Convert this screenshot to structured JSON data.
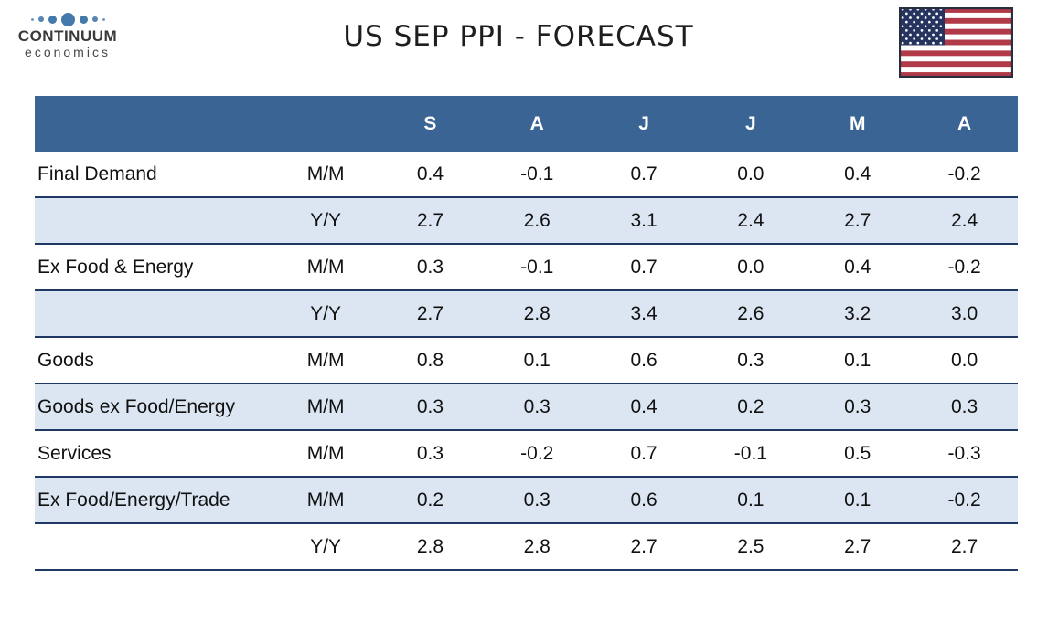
{
  "header": {
    "title": "US SEP PPI - FORECAST",
    "logo": {
      "name": "CONTINUUM",
      "subname": "economics",
      "dot_color": "#4379ab",
      "icon": "continuum-dots-logo"
    },
    "flag": {
      "icon": "us-flag-icon",
      "red": "#b13a48",
      "canton_navy": "#26345f",
      "border": "#272e40"
    }
  },
  "table": {
    "columns": [
      "S",
      "A",
      "J",
      "J",
      "M",
      "A"
    ],
    "rows": [
      {
        "label": "Final Demand",
        "freq": "M/M",
        "shaded": false,
        "values": [
          "0.4",
          "-0.1",
          "0.7",
          "0.0",
          "0.4",
          "-0.2"
        ]
      },
      {
        "label": "",
        "freq": "Y/Y",
        "shaded": true,
        "values": [
          "2.7",
          "2.6",
          "3.1",
          "2.4",
          "2.7",
          "2.4"
        ]
      },
      {
        "label": "Ex Food & Energy",
        "freq": "M/M",
        "shaded": false,
        "values": [
          "0.3",
          "-0.1",
          "0.7",
          "0.0",
          "0.4",
          "-0.2"
        ]
      },
      {
        "label": "",
        "freq": "Y/Y",
        "shaded": true,
        "values": [
          "2.7",
          "2.8",
          "3.4",
          "2.6",
          "3.2",
          "3.0"
        ]
      },
      {
        "label": "Goods",
        "freq": "M/M",
        "shaded": false,
        "values": [
          "0.8",
          "0.1",
          "0.6",
          "0.3",
          "0.1",
          "0.0"
        ]
      },
      {
        "label": "Goods ex Food/Energy",
        "freq": "M/M",
        "shaded": true,
        "values": [
          "0.3",
          "0.3",
          "0.4",
          "0.2",
          "0.3",
          "0.3"
        ]
      },
      {
        "label": "Services",
        "freq": "M/M",
        "shaded": false,
        "values": [
          "0.3",
          "-0.2",
          "0.7",
          "-0.1",
          "0.5",
          "-0.3"
        ]
      },
      {
        "label": "Ex Food/Energy/Trade",
        "freq": "M/M",
        "shaded": true,
        "values": [
          "0.2",
          "0.3",
          "0.6",
          "0.1",
          "0.1",
          "-0.2"
        ]
      },
      {
        "label": "",
        "freq": "Y/Y",
        "shaded": false,
        "values": [
          "2.8",
          "2.8",
          "2.7",
          "2.5",
          "2.7",
          "2.7"
        ]
      }
    ],
    "colors": {
      "header_bg": "#3a6494",
      "header_text": "#ffffff",
      "stripe_bg": "#dce6f2",
      "border": "#1f3864"
    }
  }
}
